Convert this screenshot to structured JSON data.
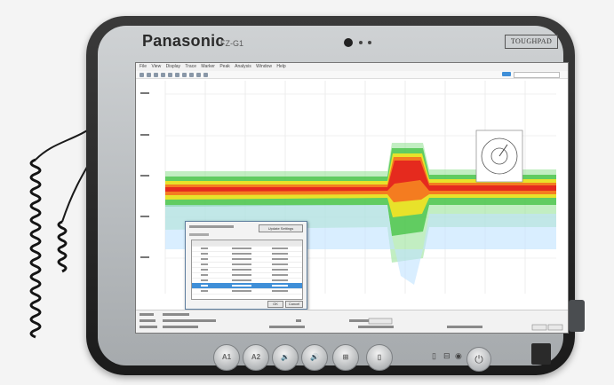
{
  "device": {
    "brand": "Panasonic",
    "model": "FZ-G1",
    "badge": "TOUGHPAD"
  },
  "hardware_buttons": [
    {
      "label": "A1",
      "icon": "a1-button-icon"
    },
    {
      "label": "A2",
      "icon": "a2-button-icon"
    },
    {
      "label": "",
      "icon": "volume-down-icon"
    },
    {
      "label": "",
      "icon": "volume-up-icon"
    },
    {
      "label": "",
      "icon": "windows-icon"
    },
    {
      "label": "",
      "icon": "rotation-lock-icon"
    }
  ],
  "colors": {
    "body": "#1b1b1b",
    "bezel": "#b6babd",
    "screen_bg": "#ffffff",
    "selection": "#3f8fd8"
  },
  "screen": {
    "menu_items": [
      "File",
      "View",
      "Display",
      "Trace",
      "Marker",
      "Peak",
      "Analysis",
      "Window",
      "Help"
    ],
    "dialog_button": "Update Settings",
    "dialog_ok": "OK",
    "dialog_cancel": "Cancel"
  }
}
